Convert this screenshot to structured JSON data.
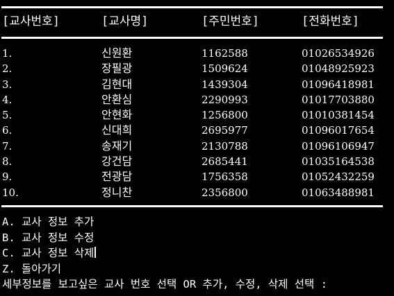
{
  "headers": [
    "[교사번호]",
    "[교사명]",
    "[주민번호]",
    "[전화번호]"
  ],
  "rows": [
    {
      "num": "1.",
      "name": "신원환",
      "ssn": "1162588",
      "phone": "01026534926"
    },
    {
      "num": "2.",
      "name": "장필광",
      "ssn": "1509624",
      "phone": "01048925923"
    },
    {
      "num": "3.",
      "name": "김현대",
      "ssn": "1439304",
      "phone": "01096418981"
    },
    {
      "num": "4.",
      "name": "안환심",
      "ssn": "2290993",
      "phone": "01017703880"
    },
    {
      "num": "5.",
      "name": "안현화",
      "ssn": "1256800",
      "phone": "01010381454"
    },
    {
      "num": "6.",
      "name": "신대희",
      "ssn": "2695977",
      "phone": "01096017654"
    },
    {
      "num": "7.",
      "name": "송재기",
      "ssn": "2130788",
      "phone": "01096106947"
    },
    {
      "num": "8.",
      "name": "강건담",
      "ssn": "2685441",
      "phone": "01035164538"
    },
    {
      "num": "9.",
      "name": "전광담",
      "ssn": "1756358",
      "phone": "01052432259"
    },
    {
      "num": "10.",
      "name": "정니찬",
      "ssn": "2356800",
      "phone": "01063488981"
    }
  ],
  "menu": {
    "add": "A. 교사 정보 추가",
    "edit": "B. 교사 정보 수정",
    "delete": "C. 교사 정보 삭제",
    "back": "Z. 돌아가기",
    "prompt": "세부정보를 보고싶은 교사 번호 선택 OR 추가, 수정, 삭제 선택 :"
  }
}
